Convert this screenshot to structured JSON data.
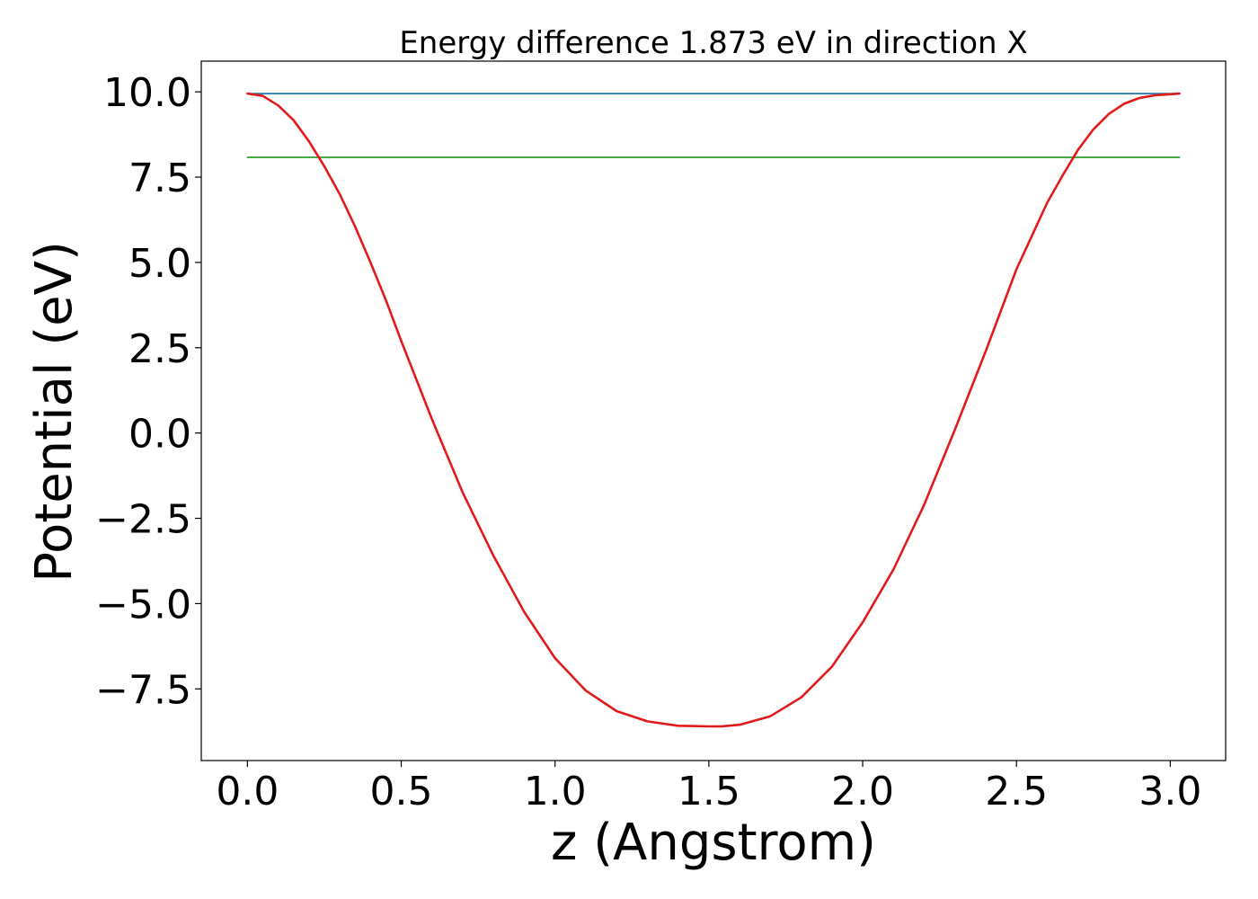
{
  "chart_data": {
    "type": "line",
    "title": "Energy difference 1.873 eV in direction X",
    "xlabel": "z (Angstrom)",
    "ylabel": "Potential (eV)",
    "xlim": [
      -0.15,
      3.18
    ],
    "ylim": [
      -9.6,
      10.9
    ],
    "xticks": [
      0.0,
      0.5,
      1.0,
      1.5,
      2.0,
      2.5,
      3.0
    ],
    "xtick_labels": [
      "0.0",
      "0.5",
      "1.0",
      "1.5",
      "2.0",
      "2.5",
      "3.0"
    ],
    "yticks": [
      10.0,
      7.5,
      5.0,
      2.5,
      0.0,
      -2.5,
      -5.0,
      -7.5
    ],
    "ytick_labels": [
      "10.0",
      "7.5",
      "5.0",
      "2.5",
      "0.0",
      "−2.5",
      "−5.0",
      "−7.5"
    ],
    "grid": false,
    "legend": "none",
    "series": [
      {
        "color": "#1f77b4",
        "x": [
          0.0,
          3.03
        ],
        "y": [
          9.95,
          9.95
        ]
      },
      {
        "color": "#2ca02c",
        "x": [
          0.0,
          3.03
        ],
        "y": [
          8.08,
          8.08
        ]
      },
      {
        "color": "#e31a1c",
        "x": [
          0.0,
          0.05,
          0.1,
          0.15,
          0.2,
          0.25,
          0.3,
          0.35,
          0.4,
          0.45,
          0.5,
          0.6,
          0.7,
          0.8,
          0.9,
          1.0,
          1.1,
          1.2,
          1.3,
          1.4,
          1.5,
          1.54,
          1.6,
          1.7,
          1.8,
          1.9,
          2.0,
          2.1,
          2.2,
          2.3,
          2.4,
          2.5,
          2.6,
          2.65,
          2.7,
          2.75,
          2.8,
          2.85,
          2.9,
          2.95,
          3.0,
          3.03
        ],
        "y": [
          9.95,
          9.88,
          9.6,
          9.17,
          8.55,
          7.82,
          7.0,
          6.05,
          5.0,
          3.9,
          2.7,
          0.4,
          -1.75,
          -3.6,
          -5.25,
          -6.6,
          -7.55,
          -8.15,
          -8.45,
          -8.58,
          -8.6,
          -8.6,
          -8.55,
          -8.3,
          -7.75,
          -6.85,
          -5.55,
          -4.0,
          -2.1,
          0.1,
          2.4,
          4.8,
          6.75,
          7.55,
          8.3,
          8.9,
          9.35,
          9.65,
          9.82,
          9.9,
          9.93,
          9.95
        ]
      }
    ]
  }
}
